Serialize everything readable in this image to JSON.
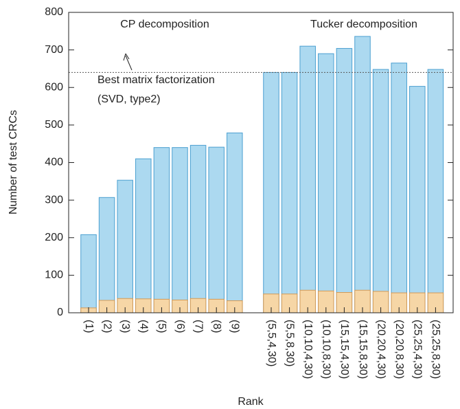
{
  "chart_data": {
    "type": "bar",
    "x_label": "Rank",
    "y_label": "Number of test CRCs",
    "categories": [
      "(1)",
      "(2)",
      "(3)",
      "(4)",
      "(5)",
      "(6)",
      "(7)",
      "(8)",
      "(9)",
      null,
      "(5,5,4,30)",
      "(5,5,8,30)",
      "(10,10,4,30)",
      "(10,10,8,30)",
      "(15,15,4,30)",
      "(15,15,8,30)",
      "(20,20,4,30)",
      "(20,20,8,30)",
      "(25,25,4,30)",
      "(25,25,8,30)"
    ],
    "series": [
      {
        "color": "#acd9f0",
        "values": [
          208,
          307,
          353,
          410,
          440,
          440,
          446,
          441,
          479,
          null,
          640,
          640,
          710,
          690,
          704,
          736,
          648,
          665,
          603,
          648
        ]
      },
      {
        "color": "#f6d6a6",
        "values": [
          13,
          33,
          38,
          37,
          36,
          34,
          38,
          36,
          32,
          null,
          50,
          50,
          60,
          58,
          54,
          60,
          57,
          53,
          53,
          53
        ]
      }
    ],
    "ylim": [
      0,
      800
    ],
    "yticks": [
      0,
      100,
      200,
      300,
      400,
      500,
      600,
      700,
      800
    ],
    "reference_line": 640,
    "group_labels": [
      "CP decomposition",
      "Tucker decomposition"
    ],
    "annotation": [
      "Best matrix factorization",
      "(SVD, type2)"
    ]
  }
}
